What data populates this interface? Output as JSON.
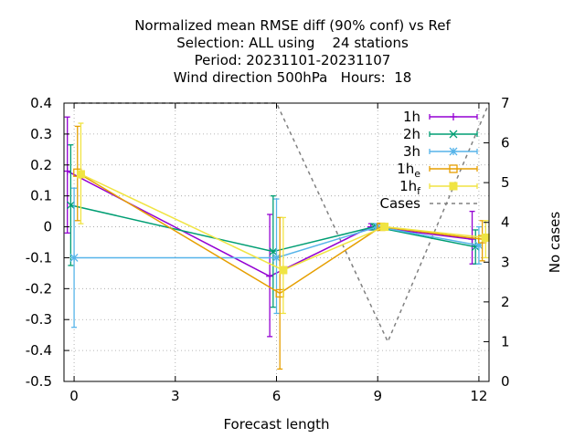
{
  "chart_data": {
    "type": "line",
    "title_lines": [
      "Normalized mean RMSE diff (90% conf) vs Ref",
      "Selection: ALL using    24 stations",
      "Period: 20231101-20231107",
      "Wind direction 500hPa   Hours:  18"
    ],
    "xlabel": "Forecast length",
    "ylabel": "",
    "y2label": "No cases",
    "xlim": [
      -0.3,
      12.3
    ],
    "ylim": [
      -0.5,
      0.4
    ],
    "y2lim": [
      0,
      7
    ],
    "xticks": [
      "0",
      "3",
      "6",
      "9",
      "12"
    ],
    "yticks": [
      "0.4",
      "0.3",
      "0.2",
      "0.1",
      "0",
      "-0.1",
      "-0.2",
      "-0.3",
      "-0.4",
      "-0.5"
    ],
    "y2ticks": [
      "7",
      "6",
      "5",
      "4",
      "3",
      "2",
      "1",
      "0"
    ],
    "grid": true,
    "legend_position": "top-right",
    "series": [
      {
        "name": "1h",
        "base": "1h",
        "sub": "",
        "color": "#9400d3",
        "marker": "plus",
        "x": [
          -0.2,
          5.8,
          8.8,
          11.8
        ],
        "y": [
          0.18,
          -0.16,
          0.0,
          -0.04
        ],
        "err_lo": [
          -0.02,
          -0.355,
          -0.01,
          -0.12
        ],
        "err_hi": [
          0.355,
          0.04,
          0.01,
          0.05
        ]
      },
      {
        "name": "2h",
        "base": "2h",
        "sub": "",
        "color": "#009e73",
        "marker": "cross",
        "x": [
          -0.1,
          5.9,
          8.9,
          11.9
        ],
        "y": [
          0.07,
          -0.08,
          0.0,
          -0.065
        ],
        "err_lo": [
          -0.125,
          -0.26,
          -0.01,
          -0.12
        ],
        "err_hi": [
          0.265,
          0.1,
          0.01,
          -0.01
        ]
      },
      {
        "name": "3h",
        "base": "3h",
        "sub": "",
        "color": "#56b4e9",
        "marker": "star",
        "x": [
          0.0,
          6.0,
          9.0,
          12.0
        ],
        "y": [
          -0.1,
          -0.1,
          0.0,
          -0.06
        ],
        "err_lo": [
          -0.325,
          -0.28,
          -0.01,
          -0.12
        ],
        "err_hi": [
          0.125,
          0.09,
          0.01,
          0.0
        ]
      },
      {
        "name": "1he",
        "base": "1h",
        "sub": "e",
        "color": "#e69f00",
        "marker": "square",
        "x": [
          0.1,
          6.1,
          9.1,
          12.1
        ],
        "y": [
          0.175,
          -0.215,
          0.0,
          -0.04
        ],
        "err_lo": [
          0.02,
          -0.46,
          -0.01,
          -0.11
        ],
        "err_hi": [
          0.325,
          0.03,
          0.01,
          0.02
        ]
      },
      {
        "name": "1hf",
        "base": "1h",
        "sub": "f",
        "color": "#f0e442",
        "marker": "filled-square",
        "x": [
          0.2,
          6.2,
          9.2,
          12.2
        ],
        "y": [
          0.17,
          -0.14,
          0.0,
          -0.035
        ],
        "err_lo": [
          0.01,
          -0.28,
          -0.01,
          -0.1
        ],
        "err_hi": [
          0.335,
          0.03,
          0.01,
          0.02
        ]
      }
    ],
    "cases": {
      "name": "Cases",
      "color": "#808080",
      "axis": "y2",
      "x": [
        0,
        6,
        9.3,
        12.3
      ],
      "y": [
        7,
        7,
        1,
        7
      ]
    }
  }
}
